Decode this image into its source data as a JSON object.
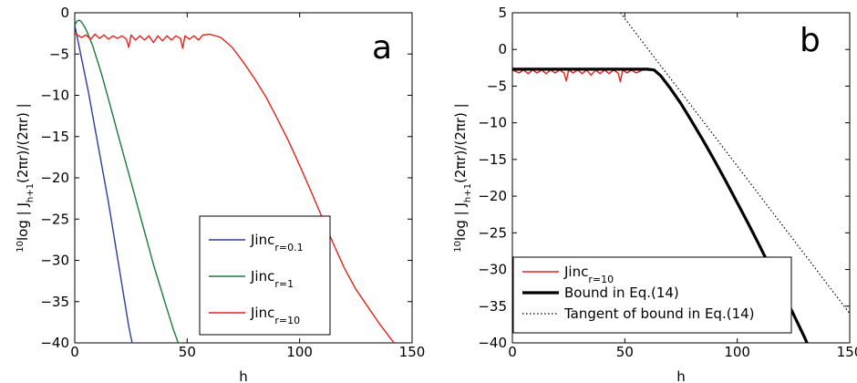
{
  "chart_data": [
    {
      "panel": "a",
      "type": "line",
      "xlabel": "h",
      "ylabel_base": "10",
      "ylabel_rest": "log | J",
      "ylabel_sub": "h+1",
      "ylabel_tail": "(2πr)/(2πr) |",
      "xlim": [
        0,
        150
      ],
      "ylim": [
        -40,
        0
      ],
      "xticks": [
        0,
        50,
        100,
        150
      ],
      "yticks": [
        0,
        -5,
        -10,
        -15,
        -20,
        -25,
        -30,
        -35,
        -40
      ],
      "grid": false,
      "legend_position": "lower-center",
      "series": [
        {
          "name": "Jinc",
          "name_sub": "r=0.1",
          "color": "#2a3e9e",
          "points": [
            [
              0,
              -1.5
            ],
            [
              3,
              -5.5
            ],
            [
              6,
              -9.5
            ],
            [
              9,
              -14
            ],
            [
              12,
              -18.5
            ],
            [
              15,
              -23
            ],
            [
              18,
              -28
            ],
            [
              21,
              -33
            ],
            [
              24,
              -38
            ],
            [
              25.5,
              -40
            ]
          ]
        },
        {
          "name": "Jinc",
          "name_sub": "r=1",
          "color": "#1a7a3a",
          "points": [
            [
              0,
              -1.5
            ],
            [
              1,
              -1
            ],
            [
              2,
              -0.9
            ],
            [
              3,
              -1.1
            ],
            [
              5,
              -2
            ],
            [
              8,
              -4
            ],
            [
              12,
              -7.5
            ],
            [
              16,
              -11.5
            ],
            [
              20,
              -15.5
            ],
            [
              25,
              -20.5
            ],
            [
              30,
              -25.5
            ],
            [
              35,
              -30.5
            ],
            [
              40,
              -35
            ],
            [
              44,
              -38.5
            ],
            [
              46,
              -40
            ]
          ]
        },
        {
          "name": "Jinc",
          "name_sub": "r=10",
          "color": "#e2231a",
          "points": [
            [
              0,
              -2.5
            ],
            [
              3,
              -3
            ],
            [
              5,
              -2.7
            ],
            [
              7,
              -3.2
            ],
            [
              9,
              -2.6
            ],
            [
              11,
              -3.1
            ],
            [
              13,
              -2.7
            ],
            [
              15,
              -3.2
            ],
            [
              17,
              -2.8
            ],
            [
              19,
              -3.1
            ],
            [
              21,
              -2.8
            ],
            [
              23,
              -3.2
            ],
            [
              24,
              -4.2
            ],
            [
              25,
              -2.7
            ],
            [
              27,
              -3.3
            ],
            [
              29,
              -2.8
            ],
            [
              31,
              -3.3
            ],
            [
              33,
              -2.8
            ],
            [
              35,
              -3.6
            ],
            [
              37,
              -2.8
            ],
            [
              39,
              -3.4
            ],
            [
              41,
              -2.8
            ],
            [
              43,
              -3.3
            ],
            [
              45,
              -2.8
            ],
            [
              47,
              -3.1
            ],
            [
              48,
              -4.3
            ],
            [
              49,
              -2.8
            ],
            [
              51,
              -3.2
            ],
            [
              53,
              -2.8
            ],
            [
              55,
              -3.3
            ],
            [
              57,
              -2.7
            ],
            [
              60,
              -2.6
            ],
            [
              65,
              -3
            ],
            [
              70,
              -4.2
            ],
            [
              75,
              -6
            ],
            [
              80,
              -8
            ],
            [
              85,
              -10.2
            ],
            [
              90,
              -12.8
            ],
            [
              95,
              -15.5
            ],
            [
              100,
              -18.5
            ],
            [
              105,
              -21.6
            ],
            [
              110,
              -24.8
            ],
            [
              115,
              -28
            ],
            [
              120,
              -31
            ],
            [
              125,
              -33.5
            ],
            [
              130,
              -35.5
            ],
            [
              135,
              -37.5
            ],
            [
              140,
              -39.3
            ],
            [
              142,
              -40
            ]
          ]
        }
      ]
    },
    {
      "panel": "b",
      "type": "line",
      "xlabel": "h",
      "ylabel_base": "10",
      "ylabel_rest": "log | J",
      "ylabel_sub": "h+1",
      "ylabel_tail": "(2πr)/(2πr) |",
      "xlim": [
        0,
        150
      ],
      "ylim": [
        -40,
        5
      ],
      "xticks": [
        0,
        50,
        100,
        150
      ],
      "yticks": [
        5,
        0,
        -5,
        -10,
        -15,
        -20,
        -25,
        -30,
        -35,
        -40
      ],
      "grid": false,
      "legend_position": "lower-left",
      "series": [
        {
          "name": "Jinc",
          "name_sub": "r=10",
          "legend_text": "Jinc",
          "color": "#e2231a",
          "style": "solid-thin",
          "points": [
            [
              0,
              -2.8
            ],
            [
              3,
              -3.2
            ],
            [
              5,
              -2.8
            ],
            [
              7,
              -3.3
            ],
            [
              9,
              -2.8
            ],
            [
              11,
              -3.2
            ],
            [
              13,
              -2.8
            ],
            [
              15,
              -3.3
            ],
            [
              17,
              -2.8
            ],
            [
              19,
              -3.2
            ],
            [
              21,
              -2.8
            ],
            [
              23,
              -3.2
            ],
            [
              24,
              -4.3
            ],
            [
              25,
              -2.8
            ],
            [
              27,
              -3.2
            ],
            [
              29,
              -2.8
            ],
            [
              31,
              -3.3
            ],
            [
              33,
              -2.8
            ],
            [
              35,
              -3.5
            ],
            [
              37,
              -2.8
            ],
            [
              39,
              -3.3
            ],
            [
              41,
              -2.8
            ],
            [
              43,
              -3.3
            ],
            [
              45,
              -2.8
            ],
            [
              47,
              -3.2
            ],
            [
              48,
              -4.4
            ],
            [
              49,
              -2.8
            ],
            [
              51,
              -3.2
            ],
            [
              53,
              -2.8
            ],
            [
              55,
              -3.2
            ],
            [
              58,
              -2.8
            ],
            [
              62,
              -2.7
            ]
          ]
        },
        {
          "name": "Bound in Eq.(14)",
          "legend_text": "Bound in Eq.(14)",
          "color": "#000000",
          "style": "solid-thick",
          "points": [
            [
              0,
              -2.7
            ],
            [
              60,
              -2.7
            ],
            [
              63,
              -2.8
            ],
            [
              66,
              -3.6
            ],
            [
              70,
              -5.2
            ],
            [
              75,
              -7.4
            ],
            [
              80,
              -9.9
            ],
            [
              85,
              -12.5
            ],
            [
              90,
              -15.2
            ],
            [
              95,
              -18
            ],
            [
              100,
              -20.9
            ],
            [
              105,
              -23.8
            ],
            [
              110,
              -26.8
            ],
            [
              115,
              -29.9
            ],
            [
              120,
              -33
            ],
            [
              125,
              -36.1
            ],
            [
              130,
              -39.3
            ],
            [
              131,
              -40
            ]
          ]
        },
        {
          "name": "Tangent of bound in Eq.(14)",
          "legend_text": "Tangent of bound in Eq.(14)",
          "color": "#000000",
          "style": "dotted",
          "points": [
            [
              48,
              5
            ],
            [
              150,
              -36
            ]
          ]
        }
      ]
    }
  ],
  "panel_letters": [
    "a",
    "b"
  ]
}
